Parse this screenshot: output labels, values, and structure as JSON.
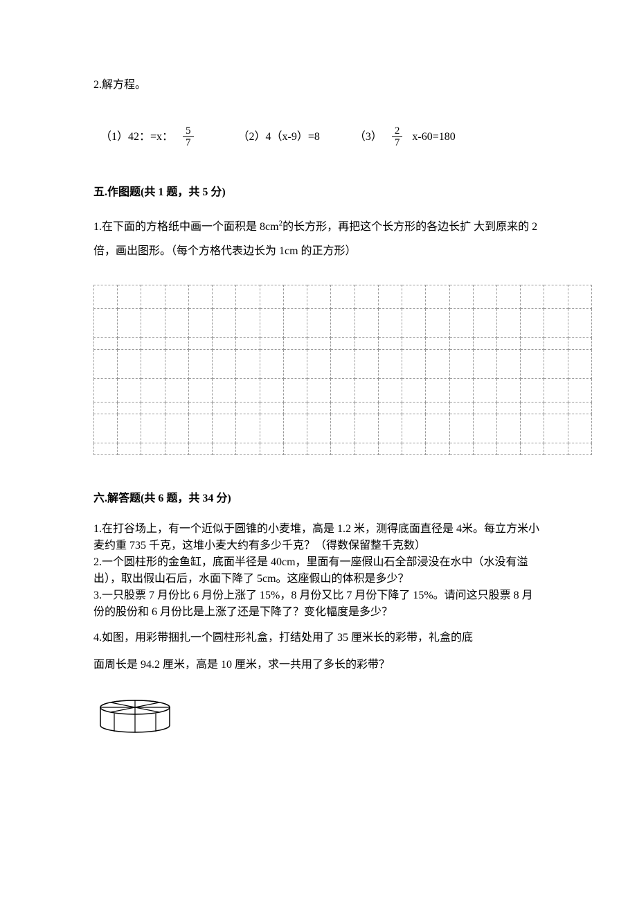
{
  "q2": {
    "title": "2.解方程。",
    "eq1_prefix": "（1）42：=x：",
    "eq1_frac_num": "5",
    "eq1_frac_den": "7",
    "eq2": "（2）4（x-9）=8",
    "eq3_prefix": "（3）",
    "eq3_frac_num": "2",
    "eq3_frac_den": "7",
    "eq3_suffix": "x-60=180"
  },
  "section5": {
    "header": "五.作图题(共 1 题，共 5 分)",
    "q1_line1": "1.在下面的方格纸中画一个面积是 8cm",
    "q1_sup": "2",
    "q1_line1b": "的长方形，再把这个长方形的各边长扩",
    "q1_line2": "大到原来的 2 倍，画出图形。（每个方格代表边长为 1cm 的正方形）"
  },
  "section6": {
    "header": "六.解答题(共 6 题，共 34 分)",
    "q1": "1.在打谷场上，有一个近似于圆锥的小麦堆，高是 1.2 米，测得底面直径是 4米。每立方米小麦约重 735 千克，这堆小麦大约有多少千克？（得数保留整千克数）",
    "q2": "2.一个圆柱形的金鱼缸，底面半径是 40cm，里面有一座假山石全部浸没在水中（水没有溢出），取出假山石后，水面下降了 5cm。这座假山的体积是多少？",
    "q3": "3.一只股票 7 月份比 6 月份上涨了 15%，8 月份又比 7 月份下降了 15%。请问这只股票 8 月份的股份和 6 月份比是上涨了还是下降了？变化幅度是多少？",
    "q4_line1": "4.如图，用彩带捆扎一个圆柱形礼盒，打结处用了 35 厘米长的彩带，礼盒的底",
    "q4_line2": "面周长是 94.2 厘米，高是 10 厘米，求一共用了多长的彩带？"
  },
  "grid": {
    "rows": 8,
    "cols": 21
  },
  "colors": {
    "text": "#000000",
    "background": "#ffffff",
    "grid_border": "#999999"
  }
}
